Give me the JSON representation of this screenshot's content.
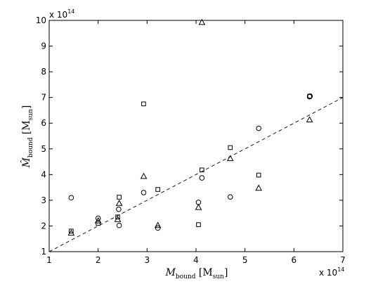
{
  "chart_data": {
    "type": "scatter",
    "xlim": [
      1,
      7
    ],
    "ylim": [
      1,
      10
    ],
    "x_ticks": [
      1,
      2,
      3,
      4,
      5,
      6,
      7
    ],
    "y_ticks": [
      1,
      2,
      3,
      4,
      5,
      6,
      7,
      8,
      9,
      10
    ],
    "x_multiplier": {
      "base": "x 10",
      "exponent": "14"
    },
    "y_multiplier": {
      "base": "x 10",
      "exponent": "14"
    },
    "xlabel": {
      "main": "M",
      "sub": "bound",
      "bracket_open": " [M",
      "unit_sub": "sun",
      "bracket_close": "]"
    },
    "ylabel": {
      "main": "M̂",
      "sub": "bound",
      "bracket_open": " [M",
      "unit_sub": "sun",
      "bracket_close": "]"
    },
    "grid": false,
    "reference_line": {
      "style": "dashed",
      "from": [
        1,
        1
      ],
      "to": [
        7,
        7
      ]
    },
    "series": [
      {
        "marker": "circle",
        "points": [
          [
            1.45,
            3.1
          ],
          [
            2.0,
            2.3
          ],
          [
            2.42,
            2.65
          ],
          [
            2.43,
            2.02
          ],
          [
            2.93,
            3.3
          ],
          [
            3.22,
            1.92
          ],
          [
            4.05,
            2.92
          ],
          [
            4.12,
            3.87
          ],
          [
            4.7,
            3.13
          ],
          [
            5.28,
            5.8
          ],
          [
            6.32,
            7.03
          ],
          [
            6.33,
            7.05
          ]
        ]
      },
      {
        "marker": "square",
        "points": [
          [
            1.45,
            1.8
          ],
          [
            2.0,
            2.1
          ],
          [
            2.4,
            2.35
          ],
          [
            2.43,
            3.12
          ],
          [
            2.93,
            6.75
          ],
          [
            3.22,
            3.42
          ],
          [
            4.05,
            2.05
          ],
          [
            4.12,
            4.18
          ],
          [
            4.7,
            5.05
          ],
          [
            5.28,
            3.98
          ],
          [
            6.32,
            7.05
          ]
        ]
      },
      {
        "marker": "triangle",
        "points": [
          [
            1.45,
            1.72
          ],
          [
            2.0,
            2.2
          ],
          [
            2.4,
            2.25
          ],
          [
            2.43,
            2.88
          ],
          [
            2.93,
            3.93
          ],
          [
            3.22,
            2.02
          ],
          [
            4.05,
            2.72
          ],
          [
            4.12,
            9.92
          ],
          [
            4.7,
            4.62
          ],
          [
            5.28,
            3.47
          ],
          [
            6.32,
            6.13
          ]
        ]
      }
    ]
  }
}
